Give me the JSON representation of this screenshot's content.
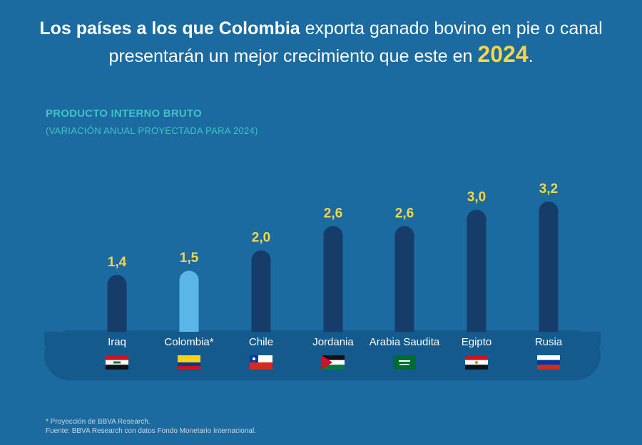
{
  "headline": {
    "bold": "Los países a los que Colombia",
    "rest": " exporta ganado bovino en pie o canal presentarán un mejor crecimiento que este en ",
    "year": "2024",
    "period": "."
  },
  "colors": {
    "background": "#1b6aa0",
    "bar": "#163c6a",
    "bar_highlight": "#5bb6e8",
    "value_label": "#f5d54a",
    "subtitle": "#3fc4c6",
    "strip": "#155a8c"
  },
  "chart_data": {
    "type": "bar",
    "title": "PRODUCTO INTERNO BRUTO",
    "subtitle": "(VARIACIÓN ANUAL PROYECTADA PARA 2024)",
    "categories": [
      "Iraq",
      "Colombia*",
      "Chile",
      "Jordania",
      "Arabia Saudita",
      "Egipto",
      "Rusia"
    ],
    "values": [
      1.4,
      1.5,
      2.0,
      2.6,
      2.6,
      3.0,
      3.2
    ],
    "value_labels": [
      "1,4",
      "1,5",
      "2,0",
      "2,6",
      "2,6",
      "3,0",
      "3,2"
    ],
    "highlight": "Colombia*",
    "flags": [
      "iraq-flag",
      "colombia-flag",
      "chile-flag",
      "jordan-flag",
      "saudi-arabia-flag",
      "egypt-flag",
      "russia-flag"
    ],
    "ylim": [
      0,
      3.2
    ],
    "grid": false
  },
  "footnotes": {
    "note": "* Proyección de BBVA Research.",
    "source": "Fuente:  BBVA Research con datos Fondo Monetario Internacional."
  }
}
